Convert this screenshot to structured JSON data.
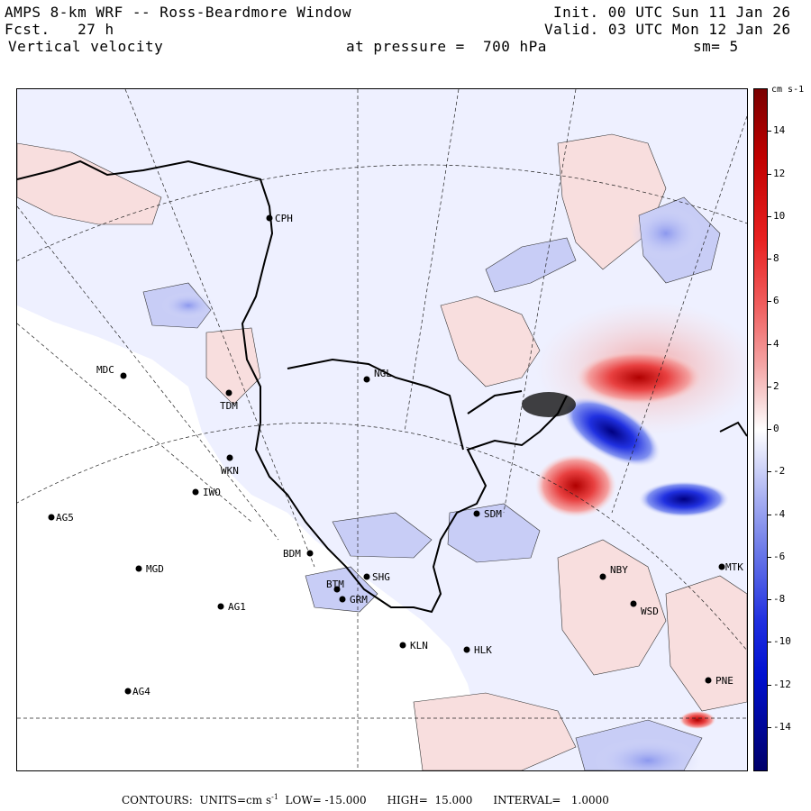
{
  "header": {
    "line1_left": "AMPS 8-km WRF -- Ross-Beardmore Window",
    "line2_left": "Fcst.   27 h",
    "line3_left": "Vertical velocity",
    "line1_right": "Init. 00 UTC Sun 11 Jan 26",
    "line2_right": "Valid. 03 UTC Mon 12 Jan 26",
    "pressure": "at pressure =  700 hPa",
    "smoothing": "sm= 5"
  },
  "colorbar": {
    "units": "cm s-1",
    "ticks": [
      "14",
      "12",
      "10",
      "8",
      "6",
      "4",
      "2",
      "0",
      "-2",
      "-4",
      "-6",
      "-8",
      "-10",
      "-12",
      "-14"
    ],
    "tick_values": [
      14,
      12,
      10,
      8,
      6,
      4,
      2,
      0,
      -2,
      -4,
      -6,
      -8,
      -10,
      -12,
      -14
    ],
    "range": [
      -16,
      16
    ],
    "colors": {
      "max": "#7a0000",
      "strong_positive": "#e00000",
      "positive": "#f07070",
      "weak_positive": "#f8d8d8",
      "zero": "#ffffff",
      "weak_negative": "#dde0fa",
      "negative": "#6a78e8",
      "strong_negative": "#0010d0",
      "min": "#00006a"
    }
  },
  "stations": [
    {
      "id": "CPH",
      "label": "CPH"
    },
    {
      "id": "MDC",
      "label": "MDC"
    },
    {
      "id": "NGL",
      "label": "NGL"
    },
    {
      "id": "TDM",
      "label": "TDM"
    },
    {
      "id": "WKN",
      "label": "WKN"
    },
    {
      "id": "IWO",
      "label": "IWO"
    },
    {
      "id": "AG5",
      "label": "AG5"
    },
    {
      "id": "SDM",
      "label": "SDM"
    },
    {
      "id": "BDM",
      "label": "BDM"
    },
    {
      "id": "MGD",
      "label": "MGD"
    },
    {
      "id": "SHG",
      "label": "SHG"
    },
    {
      "id": "BTM",
      "label": "BTM"
    },
    {
      "id": "GRM",
      "label": "GRM"
    },
    {
      "id": "AG1",
      "label": "AG1"
    },
    {
      "id": "NBY",
      "label": "NBY"
    },
    {
      "id": "MTK",
      "label": "MTK"
    },
    {
      "id": "WSD",
      "label": "WSD"
    },
    {
      "id": "KLN",
      "label": "KLN"
    },
    {
      "id": "HLK",
      "label": "HLK"
    },
    {
      "id": "AG4",
      "label": "AG4"
    },
    {
      "id": "PNE",
      "label": "PNE"
    }
  ],
  "footer": {
    "contours_label": "CONTOURS:  UNITS=cm s",
    "units_exp": "-1",
    "low": "LOW= -15.000",
    "high": "HIGH=  15.000",
    "interval": "INTERVAL=   1.0000"
  }
}
